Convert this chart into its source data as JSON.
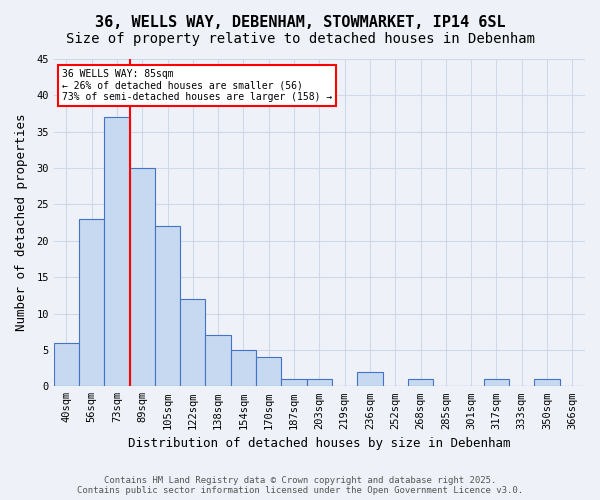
{
  "title1": "36, WELLS WAY, DEBENHAM, STOWMARKET, IP14 6SL",
  "title2": "Size of property relative to detached houses in Debenham",
  "xlabel": "Distribution of detached houses by size in Debenham",
  "ylabel": "Number of detached properties",
  "bin_labels": [
    "40sqm",
    "56sqm",
    "73sqm",
    "89sqm",
    "105sqm",
    "122sqm",
    "138sqm",
    "154sqm",
    "170sqm",
    "187sqm",
    "203sqm",
    "219sqm",
    "236sqm",
    "252sqm",
    "268sqm",
    "285sqm",
    "301sqm",
    "317sqm",
    "333sqm",
    "350sqm",
    "366sqm"
  ],
  "values": [
    6,
    23,
    37,
    30,
    22,
    12,
    7,
    5,
    4,
    1,
    1,
    0,
    2,
    0,
    1,
    0,
    0,
    1,
    0,
    1,
    0
  ],
  "bar_color": "#c6d9f1",
  "bar_edge_color": "#4472c4",
  "red_line_x": 2.5,
  "annotation_text": "36 WELLS WAY: 85sqm\n← 26% of detached houses are smaller (56)\n73% of semi-detached houses are larger (158) →",
  "annotation_box_color": "white",
  "annotation_box_edge": "red",
  "grid_color": "#d0d8e8",
  "background_color": "#eef2f8",
  "ylim": [
    0,
    45
  ],
  "yticks": [
    0,
    5,
    10,
    15,
    20,
    25,
    30,
    35,
    40,
    45
  ],
  "footnote": "Contains HM Land Registry data © Crown copyright and database right 2025.\nContains public sector information licensed under the Open Government Licence v3.0.",
  "title_fontsize": 11,
  "subtitle_fontsize": 10,
  "axis_label_fontsize": 9,
  "tick_fontsize": 7.5,
  "footnote_fontsize": 6.5
}
